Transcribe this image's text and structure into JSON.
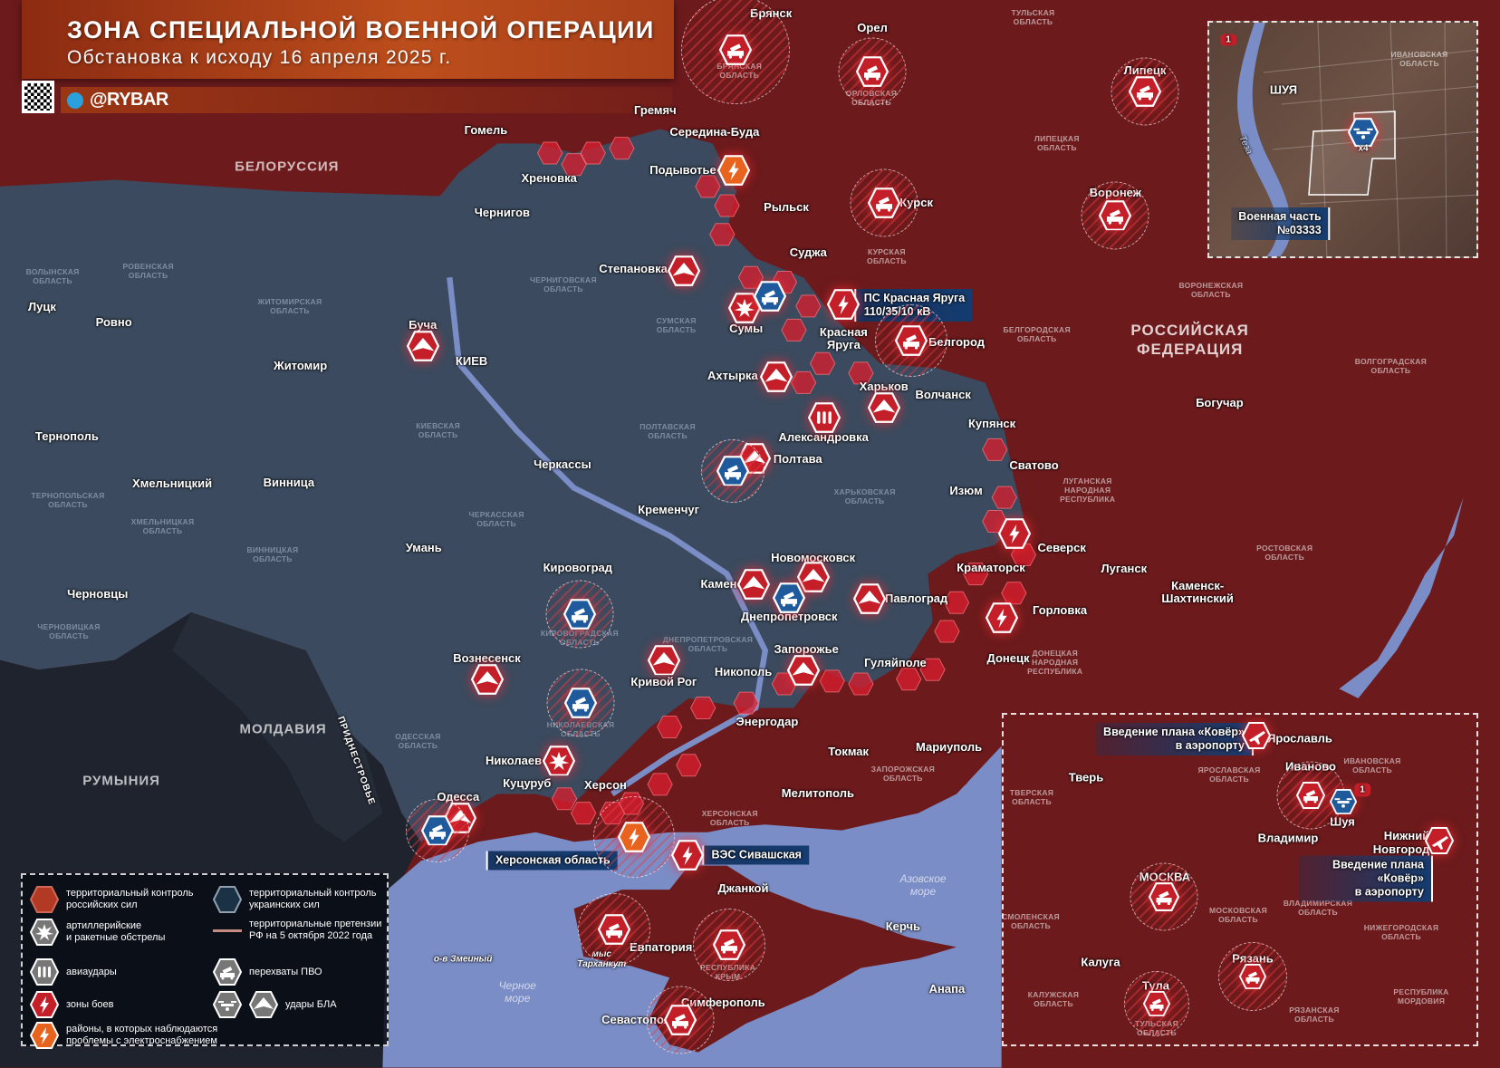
{
  "header": {
    "title": "ЗОНА СПЕЦИАЛЬНОЙ ВОЕННОЙ ОПЕРАЦИИ",
    "subtitle": "Обстановка к исходу 16 апреля 2025 г.",
    "brand": "@RYBAR"
  },
  "colors": {
    "russian_control": "#8a2222",
    "ukrainian_control": "#3b4a5e",
    "sea": "#7b8dc6",
    "header": "#bd4e1c",
    "callout": "#143c70",
    "combat": "#c8202a",
    "power": "#e8641e"
  },
  "countries": {
    "belarus": "БЕЛОРУССИЯ",
    "russia": "РОССИЙСКАЯ\nФЕДЕРАЦИЯ",
    "moldova": "МОЛДАВИЯ",
    "romania": "РУМЫНИЯ",
    "transnistria": "ПРИДНЕСТРОВЬЕ"
  },
  "seas": {
    "black": "Черное\nморе",
    "azov": "Азовское\nморе",
    "tarkhankut": "мыс\nТарханкут",
    "zmeiny": "о-в Змеиный"
  },
  "cities": [
    "Брянск",
    "Орел",
    "Гомель",
    "Гремяч",
    "Середина-Буда",
    "Хреновка",
    "Подывотье",
    "Рыльск",
    "Курск",
    "Чернигов",
    "Суджа",
    "Степановка",
    "Сумы",
    "Красная\nЯруга",
    "Белгород",
    "Буча",
    "КИЕВ",
    "Луцк",
    "Ровно",
    "Житомир",
    "Ахтырка",
    "Харьков",
    "Волчанск",
    "Купянск",
    "Александровка",
    "Тернополь",
    "Полтава",
    "Сватово",
    "Черкассы",
    "Хмельницкий",
    "Винница",
    "Изюм",
    "Кременчуг",
    "Северск",
    "Краматорск",
    "Умань",
    "Кировоград",
    "Новомосковск",
    "Каменское",
    "Павлоград",
    "Днепропетровск",
    "Горловка",
    "Черновцы",
    "Луганск",
    "Каменск-\nШахтинский",
    "Донецк",
    "Запорожье",
    "Гуляйполе",
    "Вознесенск",
    "Кривой Рог",
    "Никополь",
    "Энергодар",
    "Токмак",
    "Мариуполь",
    "Николаев",
    "Куцуруб",
    "Херсон",
    "Мелитополь",
    "Одесса",
    "Джанкой",
    "Керчь",
    "Евпатория",
    "Симферополь",
    "Севастополь",
    "Анапа",
    "Богучар",
    "Липецк",
    "Воронеж"
  ],
  "oblasts": [
    "БРЯНСКАЯ\nОБЛАСТЬ",
    "ОРЛОВСКАЯ\nОБЛАСТЬ",
    "ТУЛЬСКАЯ\nОБЛАСТЬ",
    "ЛИПЕЦКАЯ\nОБЛАСТЬ",
    "КУРСКАЯ\nОБЛАСТЬ",
    "ВОРОНЕЖСКАЯ\nОБЛАСТЬ",
    "БЕЛГОРОДСКАЯ\nОБЛАСТЬ",
    "ВОЛГОГРАДСКАЯ\nОБЛАСТЬ",
    "ЛУГАНСКАЯ\nНАРОДНАЯ\nРЕСПУБЛИКА",
    "РОСТОВСКАЯ\nОБЛАСТЬ",
    "ДОНЕЦКАЯ\nНАРОДНАЯ\nРЕСПУБЛИКА",
    "ЗАПОРОЖСКАЯ\nОБЛАСТЬ",
    "ХЕРСОНСКАЯ\nОБЛАСТЬ",
    "РЕСПУБЛИКА\nКРЫМ"
  ],
  "ua_oblasts": [
    "СУМСКАЯ\nОБЛАСТЬ",
    "ЧЕРНИГОВСКАЯ\nОБЛАСТЬ",
    "ПОЛТАВСКАЯ\nОБЛАСТЬ",
    "ХАРЬКОВСКАЯ\nОБЛАСТЬ",
    "ДНЕПРОПЕТРОВСКАЯ\nОБЛАСТЬ",
    "КИЕВСКАЯ\nОБЛАСТЬ",
    "ЧЕРКАССКАЯ\nОБЛАСТЬ",
    "КИРОВОГРАДСКАЯ\nОБЛАСТЬ",
    "НИКОЛАЕВСКАЯ\nОБЛАСТЬ",
    "ОДЕССКАЯ\nОБЛАСТЬ",
    "ЖИТОМИРСКАЯ\nОБЛАСТЬ",
    "РОВЕНСКАЯ\nОБЛАСТЬ",
    "ВОЛЫНСКАЯ\nОБЛАСТЬ",
    "ТЕРНОПОЛЬСКАЯ\nОБЛАСТЬ",
    "ХМЕЛЬНИЦКАЯ\nОБЛАСТЬ",
    "ВИННИЦКАЯ\nОБЛАСТЬ",
    "ЧЕРНОВИЦКАЯ\nОБЛАСТЬ"
  ],
  "callouts": {
    "krasnaya_yaruga": "ПС Красная Яруга\n110/35/10 кВ",
    "kherson_obl": "Херсонская область",
    "sivash": "ВЭС Сивашская"
  },
  "markers": [
    "air-defense",
    "air-defense",
    "air-defense",
    "air-defense",
    "air-defense",
    "power-outage",
    "uav-strike",
    "artillery",
    "air-defense-ua",
    "combat-zone",
    "air-defense",
    "uav-strike",
    "uav-strike",
    "uav-strike",
    "airstrike",
    "uav-strike",
    "air-defense-ua",
    "combat-zone",
    "combat-zone",
    "air-defense-ua",
    "air-defense-ua",
    "uav-strike",
    "uav-strike",
    "air-defense-ua",
    "uav-strike",
    "uav-strike",
    "uav-strike",
    "uav-strike",
    "artillery",
    "uav-strike",
    "air-defense-ua",
    "power-outage",
    "combat-zone",
    "air-defense",
    "air-defense",
    "air-defense"
  ],
  "inset_shuya": {
    "region": "ИВАНОВСКАЯ\nОБЛАСТЬ",
    "city": "ШУЯ",
    "river": "Теза",
    "count": "x4",
    "badge": "1",
    "target": "Военная часть\n№03333"
  },
  "inset_central": {
    "callout_yaroslavl": "Введение плана «Ковёр»\nв аэропорту",
    "callout_nn": "Введение плана «Ковёр»\nв аэропорту",
    "cities": [
      "Ярославль",
      "Иваново",
      "Шуя",
      "Тверь",
      "Владимир",
      "Нижний\nНовгород",
      "МОСКВА",
      "Калуга",
      "Тула",
      "Рязань"
    ],
    "oblasts": [
      "ЯРОСЛАВСКАЯ\nОБЛАСТЬ",
      "ИВАНОВСКАЯ\nОБЛАСТЬ",
      "ТВЕРСКАЯ\nОБЛАСТЬ",
      "МОСКОВСКАЯ\nОБЛАСТЬ",
      "ВЛАДИМИРСКАЯ\nОБЛАСТЬ",
      "СМОЛЕНСКАЯ\nОБЛАСТЬ",
      "НИЖЕГОРОДСКАЯ\nОБЛАСТЬ",
      "КАЛУЖСКАЯ\nОБЛАСТЬ",
      "ТУЛЬСКАЯ\nОБЛАСТЬ",
      "РЯЗАНСКАЯ\nОБЛАСТЬ",
      "РЕСПУБЛИКА\nМОРДОВИЯ"
    ],
    "badge": "1"
  },
  "legend": [
    {
      "icon": "russian-control",
      "label": "территориальный контроль\nроссийских сил"
    },
    {
      "icon": "ukrainian-control",
      "label": "территориальный контроль\nукраинских сил"
    },
    {
      "icon": "artillery",
      "label": "артиллерийские\nи ракетные обстрелы"
    },
    {
      "icon": "claims-line",
      "label": "территориальные претензии\nРФ на 5 октября 2022 года"
    },
    {
      "icon": "airstrike",
      "label": "авиаудары"
    },
    {
      "icon": "air-defense",
      "label": "перехваты ПВО"
    },
    {
      "icon": "combat-zone",
      "label": "зоны боев"
    },
    {
      "icon": "uav-strike",
      "label": "удары БЛА"
    },
    {
      "icon": "power-outage",
      "label": "районы, в которых наблюдаются\nпроблемы с электроснабжением"
    }
  ]
}
